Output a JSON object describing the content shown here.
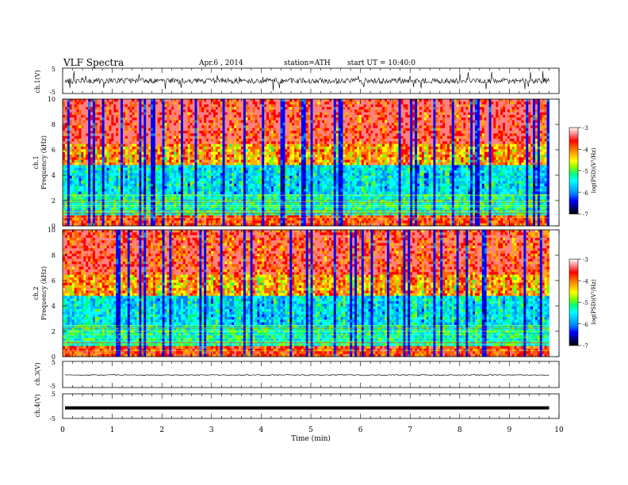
{
  "header": {
    "title": "VLF  Spectra",
    "date": "Apr.6  , 2014",
    "station": "station=ATH",
    "start": "start  UT  =   10:40:0"
  },
  "colorbar": {
    "label": "log(PSD)(V²/Hz)",
    "ticks": [
      "-3",
      "-4",
      "-5",
      "-6",
      "-7"
    ],
    "colors": [
      "#000000",
      "#000080",
      "#0000ff",
      "#0080ff",
      "#00c0ff",
      "#00ffff",
      "#00ff80",
      "#80ff00",
      "#ffff00",
      "#ffb000",
      "#ff6000",
      "#ff0000",
      "#ff8080",
      "#ffffff"
    ]
  },
  "chart_data": [
    {
      "type": "line",
      "panel": "ch1-waveform",
      "ylabel": "ch.1(V)",
      "ylim": [
        -5,
        5
      ],
      "yticks": [
        "5",
        "-5"
      ],
      "xlim": [
        0,
        9.8
      ],
      "grid": false
    },
    {
      "type": "heatmap",
      "panel": "ch1-spectrogram",
      "ylabel_channel": "ch.1",
      "ylabel": "Frequency  (kHz)",
      "ylim": [
        0,
        10
      ],
      "yticks": [
        "0",
        "2",
        "4",
        "6",
        "8",
        "10"
      ],
      "xlim": [
        0,
        9.8
      ],
      "zlim": [
        -7,
        -3
      ]
    },
    {
      "type": "heatmap",
      "panel": "ch2-spectrogram",
      "ylabel_channel": "ch.2",
      "ylabel": "Frequency  (kHz)",
      "ylim": [
        0,
        10
      ],
      "yticks": [
        "0",
        "2",
        "4",
        "6",
        "8",
        "10"
      ],
      "xlim": [
        0,
        9.8
      ],
      "zlim": [
        -7,
        -3
      ]
    },
    {
      "type": "line",
      "panel": "ch3-waveform",
      "ylabel": "ch.3(V)",
      "ylim": [
        -5,
        5
      ],
      "yticks": [
        "5",
        "-5"
      ],
      "xlim": [
        0,
        9.8
      ],
      "level": -0.2
    },
    {
      "type": "line",
      "panel": "ch4-waveform",
      "ylabel": "ch.4(V)",
      "ylim": [
        -5,
        5
      ],
      "yticks": [
        "5",
        "-5"
      ],
      "xlim": [
        0,
        9.8
      ],
      "level": -0.7,
      "xlabel": "Time  (min)",
      "xticks": [
        "0",
        "1",
        "2",
        "3",
        "4",
        "5",
        "6",
        "7",
        "8",
        "9",
        "10"
      ]
    }
  ]
}
